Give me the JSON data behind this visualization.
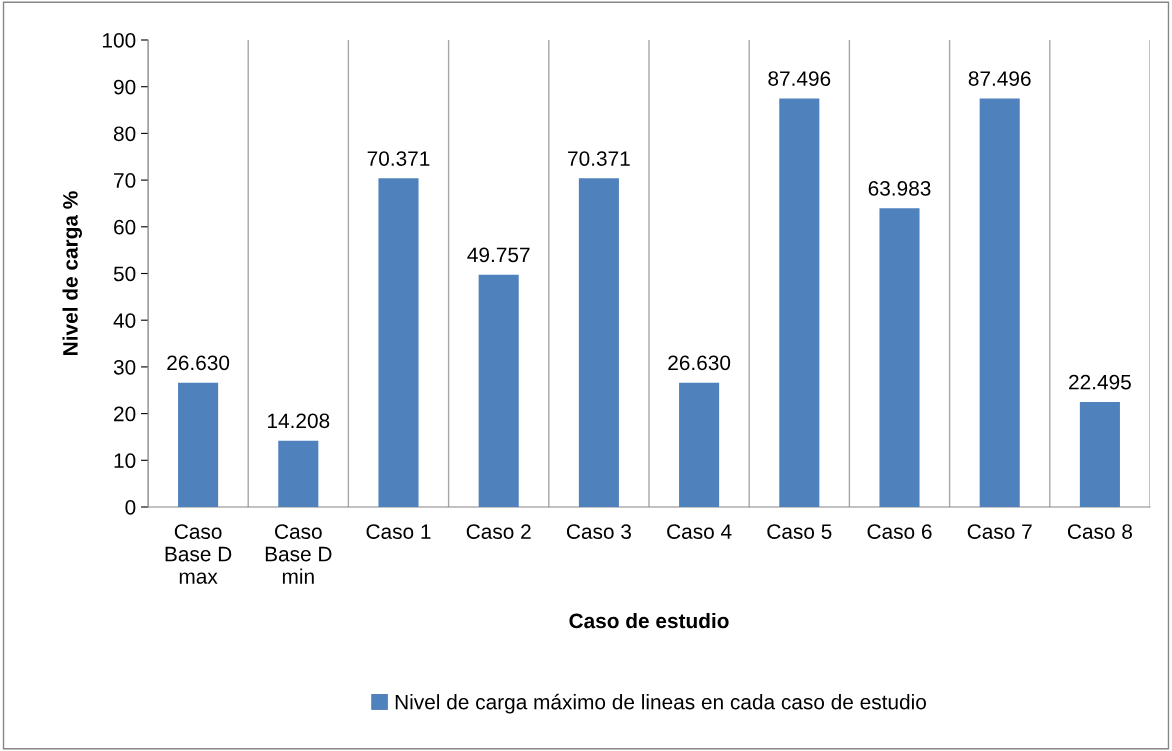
{
  "chart_data": {
    "type": "bar",
    "xlabel": "Caso de estudio",
    "ylabel": "Nivel de carga %",
    "categories": [
      "Caso Base D max",
      "Caso Base D min",
      "Caso 1",
      "Caso 2",
      "Caso 3",
      "Caso 4",
      "Caso 5",
      "Caso 6",
      "Caso 7",
      "Caso 8"
    ],
    "series": [
      {
        "name": "Nivel de carga máximo de lineas en cada caso de estudio",
        "color": "#4f81bd",
        "values": [
          26.63,
          14.208,
          70.371,
          49.757,
          70.371,
          26.63,
          87.496,
          63.983,
          87.496,
          22.495
        ],
        "value_labels": [
          "26.630",
          "14.208",
          "70.371",
          "49.757",
          "70.371",
          "26.630",
          "87.496",
          "63.983",
          "87.496",
          "22.495"
        ]
      }
    ],
    "ylim": [
      0,
      100
    ],
    "yticks": [
      0,
      10,
      20,
      30,
      40,
      50,
      60,
      70,
      80,
      90,
      100
    ],
    "grid": "x",
    "legend": "bottom"
  }
}
